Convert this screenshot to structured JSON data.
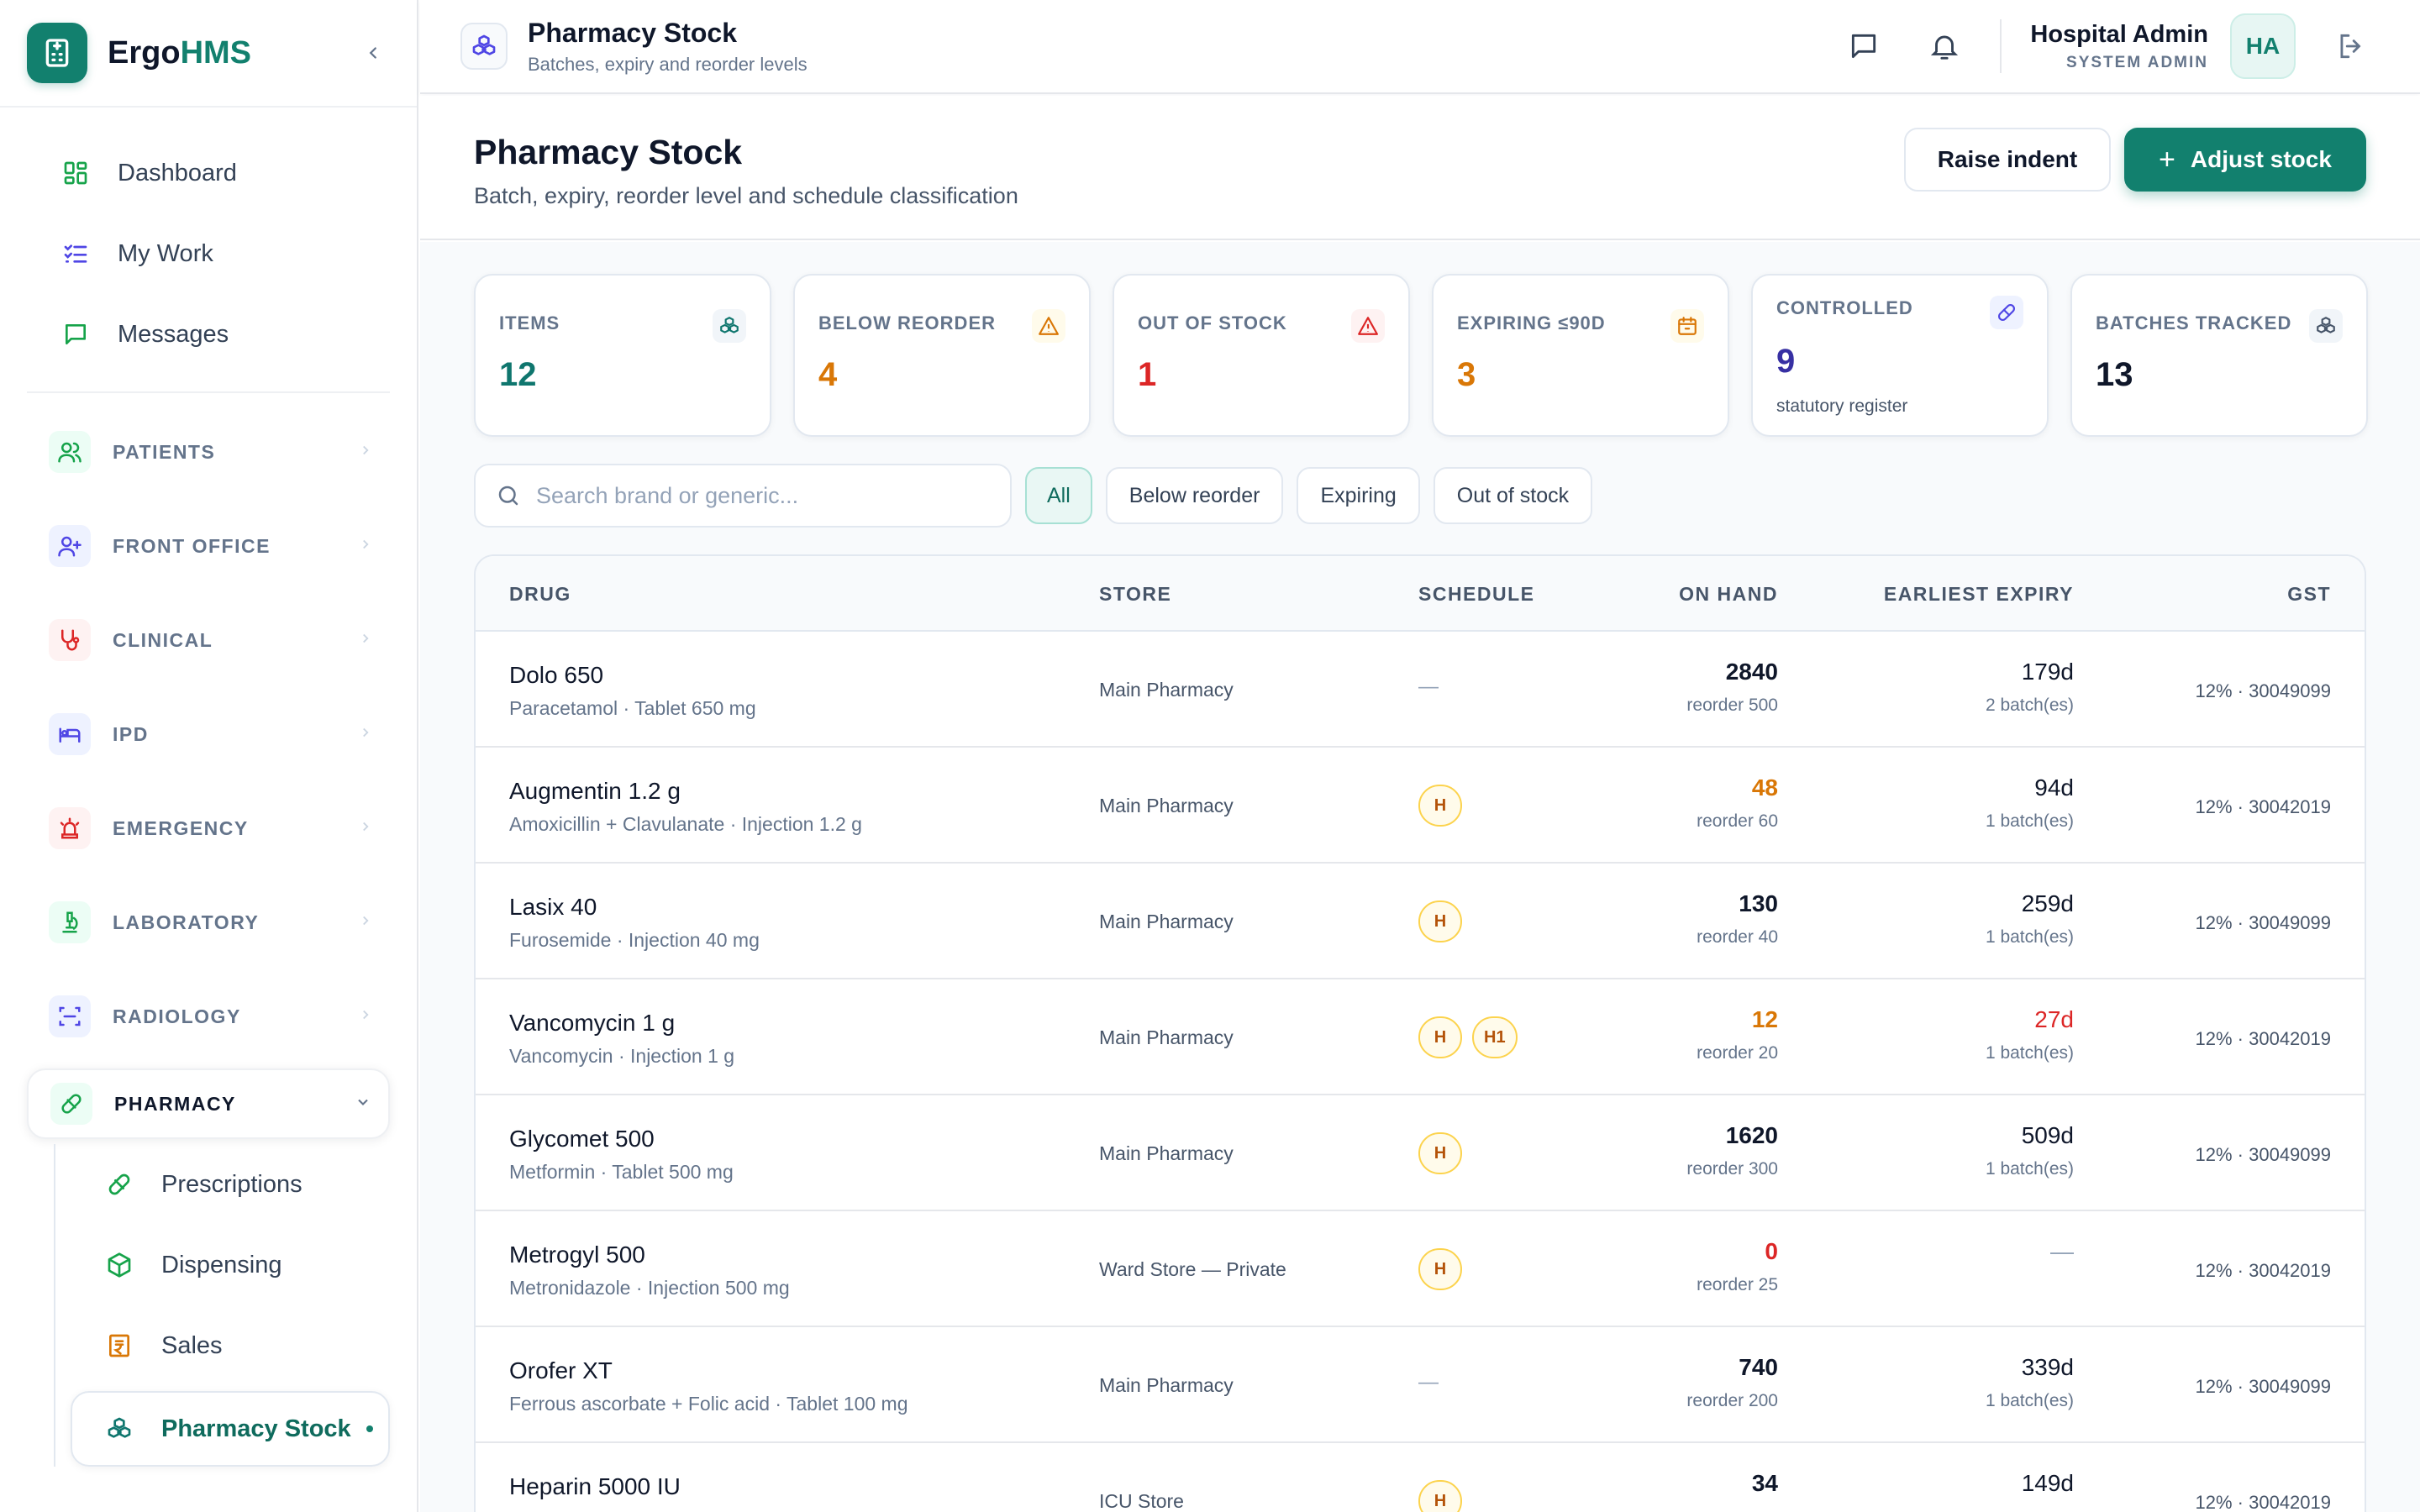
{
  "brand": {
    "name_a": "Ergo",
    "name_b": "HMS"
  },
  "nav": [
    {
      "label": "Dashboard",
      "icon": "dashboard-icon"
    },
    {
      "label": "My Work",
      "icon": "tasks-icon"
    },
    {
      "label": "Messages",
      "icon": "message-icon"
    }
  ],
  "sections": [
    {
      "label": "PATIENTS",
      "icon": "users-icon",
      "color": "#16a34a",
      "bg": "#ecfdf5"
    },
    {
      "label": "FRONT OFFICE",
      "icon": "user-plus-icon",
      "color": "#4f46e5",
      "bg": "#eef2ff"
    },
    {
      "label": "CLINICAL",
      "icon": "stethoscope-icon",
      "color": "#dc2626",
      "bg": "#fef2f2"
    },
    {
      "label": "IPD",
      "icon": "bed-icon",
      "color": "#4f46e5",
      "bg": "#eef2ff"
    },
    {
      "label": "EMERGENCY",
      "icon": "siren-icon",
      "color": "#dc2626",
      "bg": "#fef2f2"
    },
    {
      "label": "LABORATORY",
      "icon": "microscope-icon",
      "color": "#16a34a",
      "bg": "#ecfdf5"
    },
    {
      "label": "RADIOLOGY",
      "icon": "scan-icon",
      "color": "#4f46e5",
      "bg": "#eef2ff"
    },
    {
      "label": "PHARMACY",
      "icon": "pill-icon",
      "color": "#16a34a",
      "bg": "#ecfdf5"
    }
  ],
  "pharmacy_sub": [
    {
      "label": "Prescriptions",
      "icon": "pill-icon"
    },
    {
      "label": "Dispensing",
      "icon": "package-icon"
    },
    {
      "label": "Sales",
      "icon": "receipt-icon"
    },
    {
      "label": "Pharmacy Stock",
      "icon": "boxes-icon"
    }
  ],
  "topbar": {
    "title": "Pharmacy Stock",
    "subtitle": "Batches, expiry and reorder levels",
    "user_name": "Hospital Admin",
    "user_role": "SYSTEM ADMIN",
    "avatar": "HA"
  },
  "page": {
    "title": "Pharmacy Stock",
    "subtitle": "Batch, expiry, reorder level and schedule classification",
    "raise_indent": "Raise indent",
    "adjust_stock": "Adjust stock"
  },
  "cards": [
    {
      "label": "ITEMS",
      "value": "12",
      "color": "#0f766e",
      "icon": "boxes-icon",
      "icon_color": "#0f766e",
      "icon_bg": "#f1f5f9"
    },
    {
      "label": "BELOW REORDER",
      "value": "4",
      "color": "#d97706",
      "icon": "warning-icon",
      "icon_color": "#d97706",
      "icon_bg": "#fffbeb"
    },
    {
      "label": "OUT OF STOCK",
      "value": "1",
      "color": "#dc2626",
      "icon": "alert-triangle-icon",
      "icon_color": "#dc2626",
      "icon_bg": "#fef2f2"
    },
    {
      "label": "EXPIRING ≤90D",
      "value": "3",
      "color": "#d97706",
      "icon": "calendar-icon",
      "icon_color": "#d97706",
      "icon_bg": "#fffbeb"
    },
    {
      "label": "CONTROLLED",
      "value": "9",
      "color": "#3730a3",
      "icon": "pill-icon",
      "icon_color": "#4f46e5",
      "icon_bg": "#eef2ff",
      "note": "statutory register"
    },
    {
      "label": "BATCHES TRACKED",
      "value": "13",
      "color": "#0f172a",
      "icon": "boxes-icon",
      "icon_color": "#475569",
      "icon_bg": "#f1f5f9"
    }
  ],
  "search": {
    "placeholder": "Search brand or generic..."
  },
  "filters": [
    "All",
    "Below reorder",
    "Expiring",
    "Out of stock"
  ],
  "table": {
    "headers": {
      "drug": "DRUG",
      "store": "STORE",
      "schedule": "SCHEDULE",
      "on_hand": "ON HAND",
      "expiry": "EARLIEST EXPIRY",
      "gst": "GST"
    },
    "rows": [
      {
        "name": "Dolo 650",
        "generic": "Paracetamol · Tablet 650 mg",
        "store": "Main Pharmacy",
        "schedule": [],
        "on_hand": "2840",
        "on_hand_status": "normal",
        "reorder": "reorder 500",
        "expiry": "179d",
        "expiry_status": "normal",
        "batches": "2 batch(es)",
        "gst": "12% · 30049099"
      },
      {
        "name": "Augmentin 1.2 g",
        "generic": "Amoxicillin + Clavulanate · Injection 1.2 g",
        "store": "Main Pharmacy",
        "schedule": [
          "H"
        ],
        "on_hand": "48",
        "on_hand_status": "low",
        "reorder": "reorder 60",
        "expiry": "94d",
        "expiry_status": "normal",
        "batches": "1 batch(es)",
        "gst": "12% · 30042019"
      },
      {
        "name": "Lasix 40",
        "generic": "Furosemide · Injection 40 mg",
        "store": "Main Pharmacy",
        "schedule": [
          "H"
        ],
        "on_hand": "130",
        "on_hand_status": "normal",
        "reorder": "reorder 40",
        "expiry": "259d",
        "expiry_status": "normal",
        "batches": "1 batch(es)",
        "gst": "12% · 30049099"
      },
      {
        "name": "Vancomycin 1 g",
        "generic": "Vancomycin · Injection 1 g",
        "store": "Main Pharmacy",
        "schedule": [
          "H",
          "H1"
        ],
        "on_hand": "12",
        "on_hand_status": "low",
        "reorder": "reorder 20",
        "expiry": "27d",
        "expiry_status": "critical",
        "batches": "1 batch(es)",
        "gst": "12% · 30042019"
      },
      {
        "name": "Glycomet 500",
        "generic": "Metformin · Tablet 500 mg",
        "store": "Main Pharmacy",
        "schedule": [
          "H"
        ],
        "on_hand": "1620",
        "on_hand_status": "normal",
        "reorder": "reorder 300",
        "expiry": "509d",
        "expiry_status": "normal",
        "batches": "1 batch(es)",
        "gst": "12% · 30049099"
      },
      {
        "name": "Metrogyl 500",
        "generic": "Metronidazole · Injection 500 mg",
        "store": "Ward Store — Private",
        "schedule": [
          "H"
        ],
        "on_hand": "0",
        "on_hand_status": "out",
        "reorder": "reorder 25",
        "expiry": "—",
        "expiry_status": "none",
        "batches": "",
        "gst": "12% · 30042019"
      },
      {
        "name": "Orofer XT",
        "generic": "Ferrous ascorbate + Folic acid · Tablet 100 mg",
        "store": "Main Pharmacy",
        "schedule": [],
        "on_hand": "740",
        "on_hand_status": "normal",
        "reorder": "reorder 200",
        "expiry": "339d",
        "expiry_status": "normal",
        "batches": "1 batch(es)",
        "gst": "12% · 30049099"
      },
      {
        "name": "Heparin 5000 IU",
        "generic": "",
        "store": "ICU Store",
        "schedule": [
          "H"
        ],
        "on_hand": "34",
        "on_hand_status": "normal",
        "reorder": "",
        "expiry": "149d",
        "expiry_status": "normal",
        "batches": "",
        "gst": "12% · 30042019"
      }
    ]
  }
}
